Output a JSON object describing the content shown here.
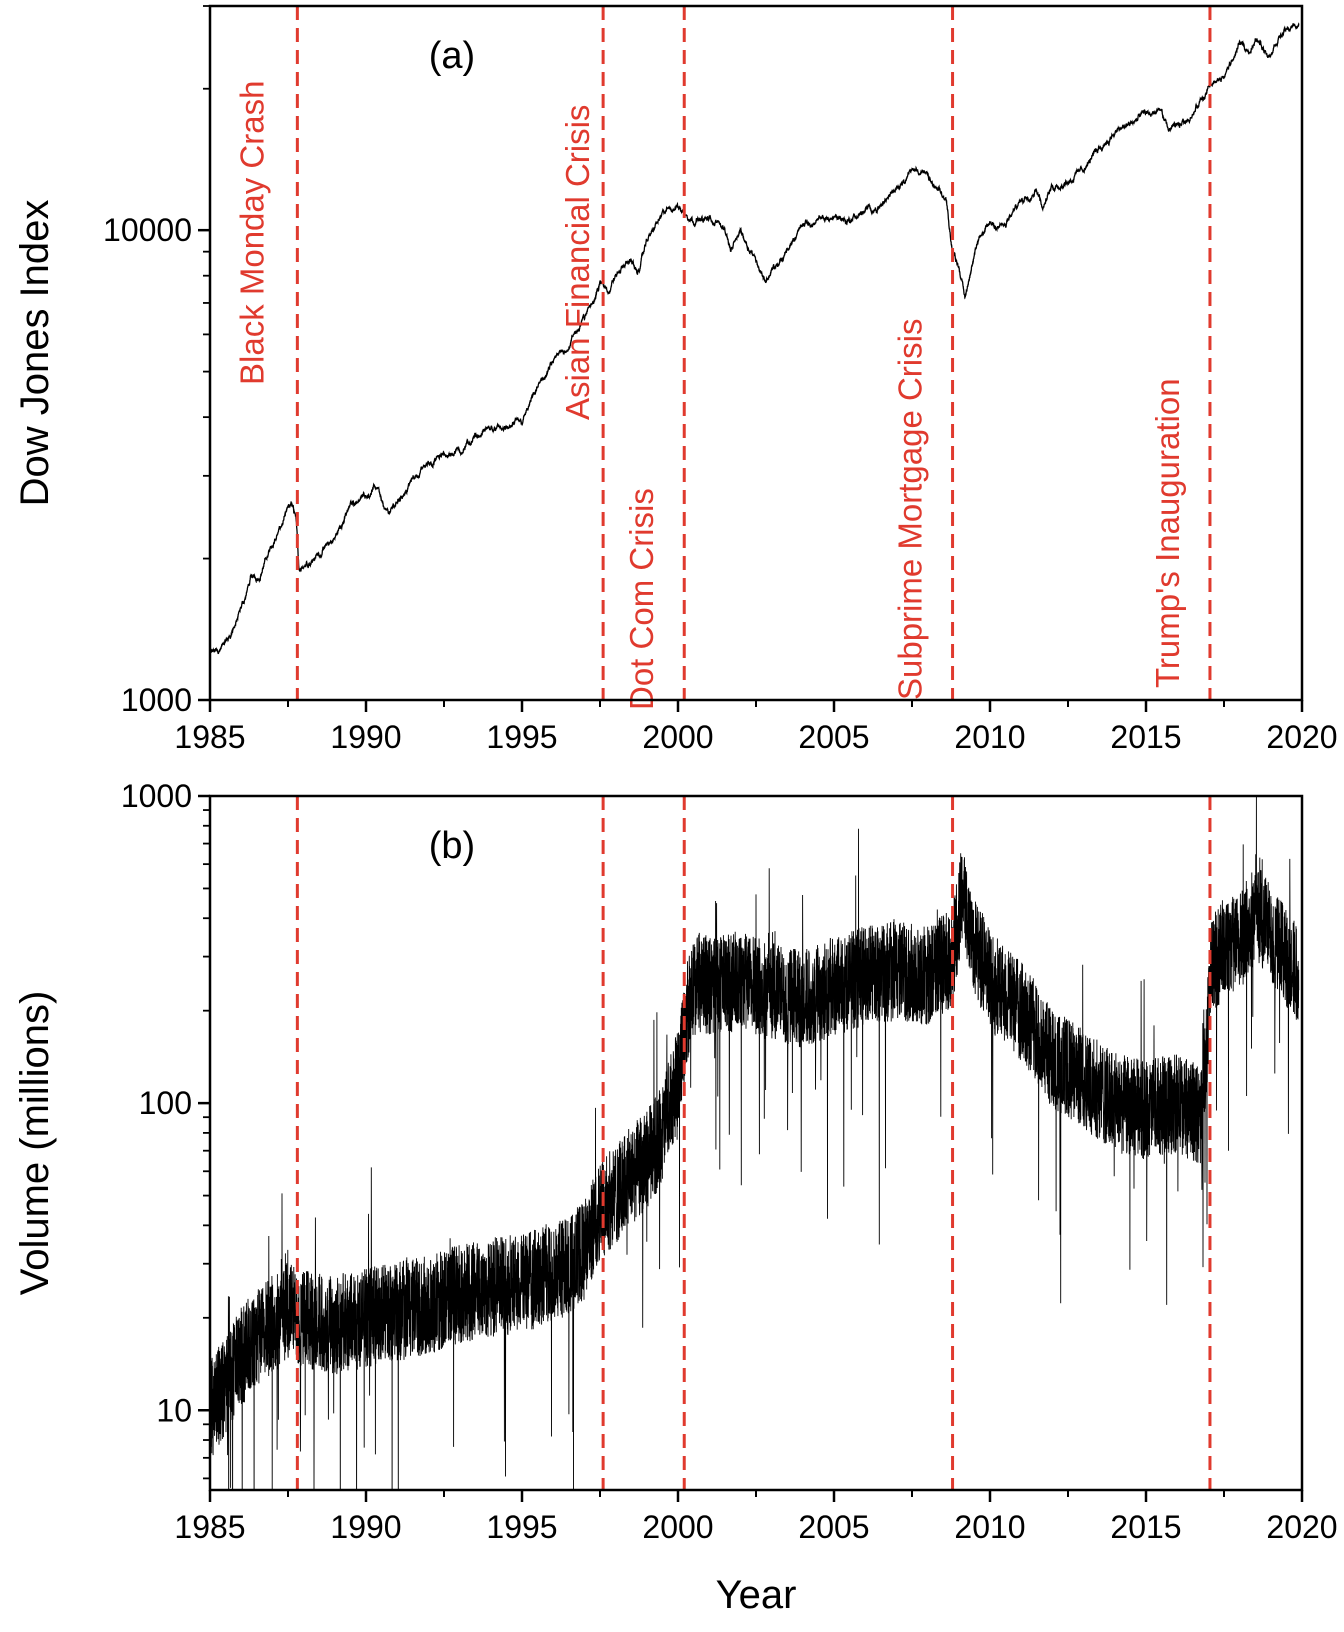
{
  "chart_data": [
    {
      "id": "a",
      "type": "line",
      "panel_label": "(a)",
      "title": "",
      "xlabel": "",
      "ylabel": "Dow Jones Index",
      "yscale": "log",
      "xlim": [
        1985,
        2020
      ],
      "ylim": [
        1000,
        30000
      ],
      "xticks": [
        "1985",
        "1990",
        "1995",
        "2000",
        "2005",
        "2010",
        "2015",
        "2020"
      ],
      "yticks": [
        "1000",
        "10000"
      ],
      "grid": false,
      "line_color": "#000000",
      "event_color": "#e03a2e",
      "events": [
        {
          "x": 1987.8,
          "label": "Black Monday Crash"
        },
        {
          "x": 1997.6,
          "label": "Asian Financial Crisis"
        },
        {
          "x": 2000.2,
          "label": "Dot Com Crisis"
        },
        {
          "x": 2008.8,
          "label": "Subprime Mortgage Crisis"
        },
        {
          "x": 2017.05,
          "label": "Trump's Inauguration"
        }
      ],
      "series": [
        {
          "x": [
            1985.0,
            1985.3,
            1985.6,
            1986.0,
            1986.3,
            1986.6,
            1987.0,
            1987.3,
            1987.6,
            1987.75,
            1987.85,
            1988.0,
            1988.5,
            1989.0,
            1989.5,
            1990.0,
            1990.4,
            1990.6,
            1990.8,
            1991.0,
            1991.5,
            1992.0,
            1992.5,
            1993.0,
            1993.5,
            1994.0,
            1994.5,
            1995.0,
            1995.5,
            1996.0,
            1996.5,
            1997.0,
            1997.5,
            1997.8,
            1998.0,
            1998.5,
            1998.7,
            1999.0,
            1999.5,
            2000.0,
            2000.2,
            2000.5,
            2001.0,
            2001.5,
            2001.7,
            2002.0,
            2002.5,
            2002.8,
            2003.0,
            2003.3,
            2003.6,
            2004.0,
            2004.5,
            2005.0,
            2005.5,
            2006.0,
            2006.5,
            2007.0,
            2007.4,
            2007.8,
            2008.2,
            2008.6,
            2008.8,
            2009.0,
            2009.2,
            2009.5,
            2010.0,
            2010.5,
            2011.0,
            2011.5,
            2011.7,
            2012.0,
            2012.5,
            2013.0,
            2013.5,
            2014.0,
            2014.5,
            2015.0,
            2015.5,
            2015.7,
            2016.0,
            2016.5,
            2017.0,
            2017.5,
            2018.0,
            2018.3,
            2018.6,
            2018.95,
            2019.2,
            2019.5,
            2019.9
          ],
          "y": [
            1250,
            1280,
            1350,
            1550,
            1800,
            1850,
            2150,
            2350,
            2600,
            2450,
            1900,
            1950,
            2050,
            2200,
            2600,
            2750,
            2850,
            2500,
            2500,
            2650,
            2950,
            3200,
            3300,
            3400,
            3600,
            3800,
            3750,
            3900,
            4600,
            5200,
            5700,
            6500,
            7700,
            7500,
            8000,
            8700,
            8000,
            9500,
            10800,
            11300,
            10900,
            10600,
            10500,
            10200,
            9000,
            10000,
            8700,
            7800,
            8200,
            8500,
            9300,
            10300,
            10400,
            10700,
            10500,
            11000,
            11200,
            12400,
            13300,
            13500,
            12300,
            11500,
            9000,
            8500,
            7200,
            9000,
            10400,
            10200,
            11600,
            12400,
            11200,
            12400,
            12800,
            13500,
            15000,
            16100,
            16800,
            17600,
            17800,
            16300,
            16500,
            17800,
            19900,
            21200,
            24700,
            24300,
            25500,
            23500,
            25500,
            26700,
            27500
          ]
        }
      ]
    },
    {
      "id": "b",
      "type": "line",
      "panel_label": "(b)",
      "title": "",
      "xlabel": "Year",
      "ylabel": "Volume (millions)",
      "yscale": "log",
      "xlim": [
        1985,
        2020
      ],
      "ylim": [
        5.5,
        1000
      ],
      "xticks": [
        "1985",
        "1990",
        "1995",
        "2000",
        "2005",
        "2010",
        "2015",
        "2020"
      ],
      "yticks": [
        "10",
        "100",
        "1000"
      ],
      "grid": false,
      "line_color": "#000000",
      "event_color": "#e03a2e",
      "events": [
        {
          "x": 1987.8,
          "label": ""
        },
        {
          "x": 1997.6,
          "label": ""
        },
        {
          "x": 2000.2,
          "label": ""
        },
        {
          "x": 2008.8,
          "label": ""
        },
        {
          "x": 2017.05,
          "label": ""
        }
      ],
      "series": [
        {
          "x": [
            1985.0,
            1985.5,
            1986.0,
            1986.5,
            1987.0,
            1987.5,
            1988.0,
            1989.0,
            1990.0,
            1991.0,
            1992.0,
            1993.0,
            1994.0,
            1995.0,
            1996.0,
            1996.5,
            1997.0,
            1997.5,
            1998.0,
            1998.5,
            1999.0,
            1999.5,
            2000.0,
            2000.3,
            2000.6,
            2001.0,
            2002.0,
            2003.0,
            2004.0,
            2005.0,
            2006.0,
            2007.0,
            2008.0,
            2008.8,
            2009.1,
            2009.5,
            2010.0,
            2011.0,
            2012.0,
            2013.0,
            2014.0,
            2015.0,
            2016.0,
            2016.8,
            2017.1,
            2017.5,
            2018.0,
            2018.5,
            2019.0,
            2019.5,
            2019.9
          ],
          "y": [
            10,
            12,
            15,
            17,
            19,
            21,
            20,
            19,
            20,
            21,
            22,
            24,
            25,
            26,
            28,
            30,
            33,
            45,
            50,
            58,
            65,
            80,
            120,
            200,
            250,
            240,
            250,
            230,
            220,
            240,
            260,
            270,
            260,
            300,
            480,
            330,
            250,
            200,
            140,
            120,
            100,
            95,
            100,
            90,
            280,
            320,
            330,
            420,
            360,
            300,
            260
          ]
        }
      ]
    }
  ]
}
